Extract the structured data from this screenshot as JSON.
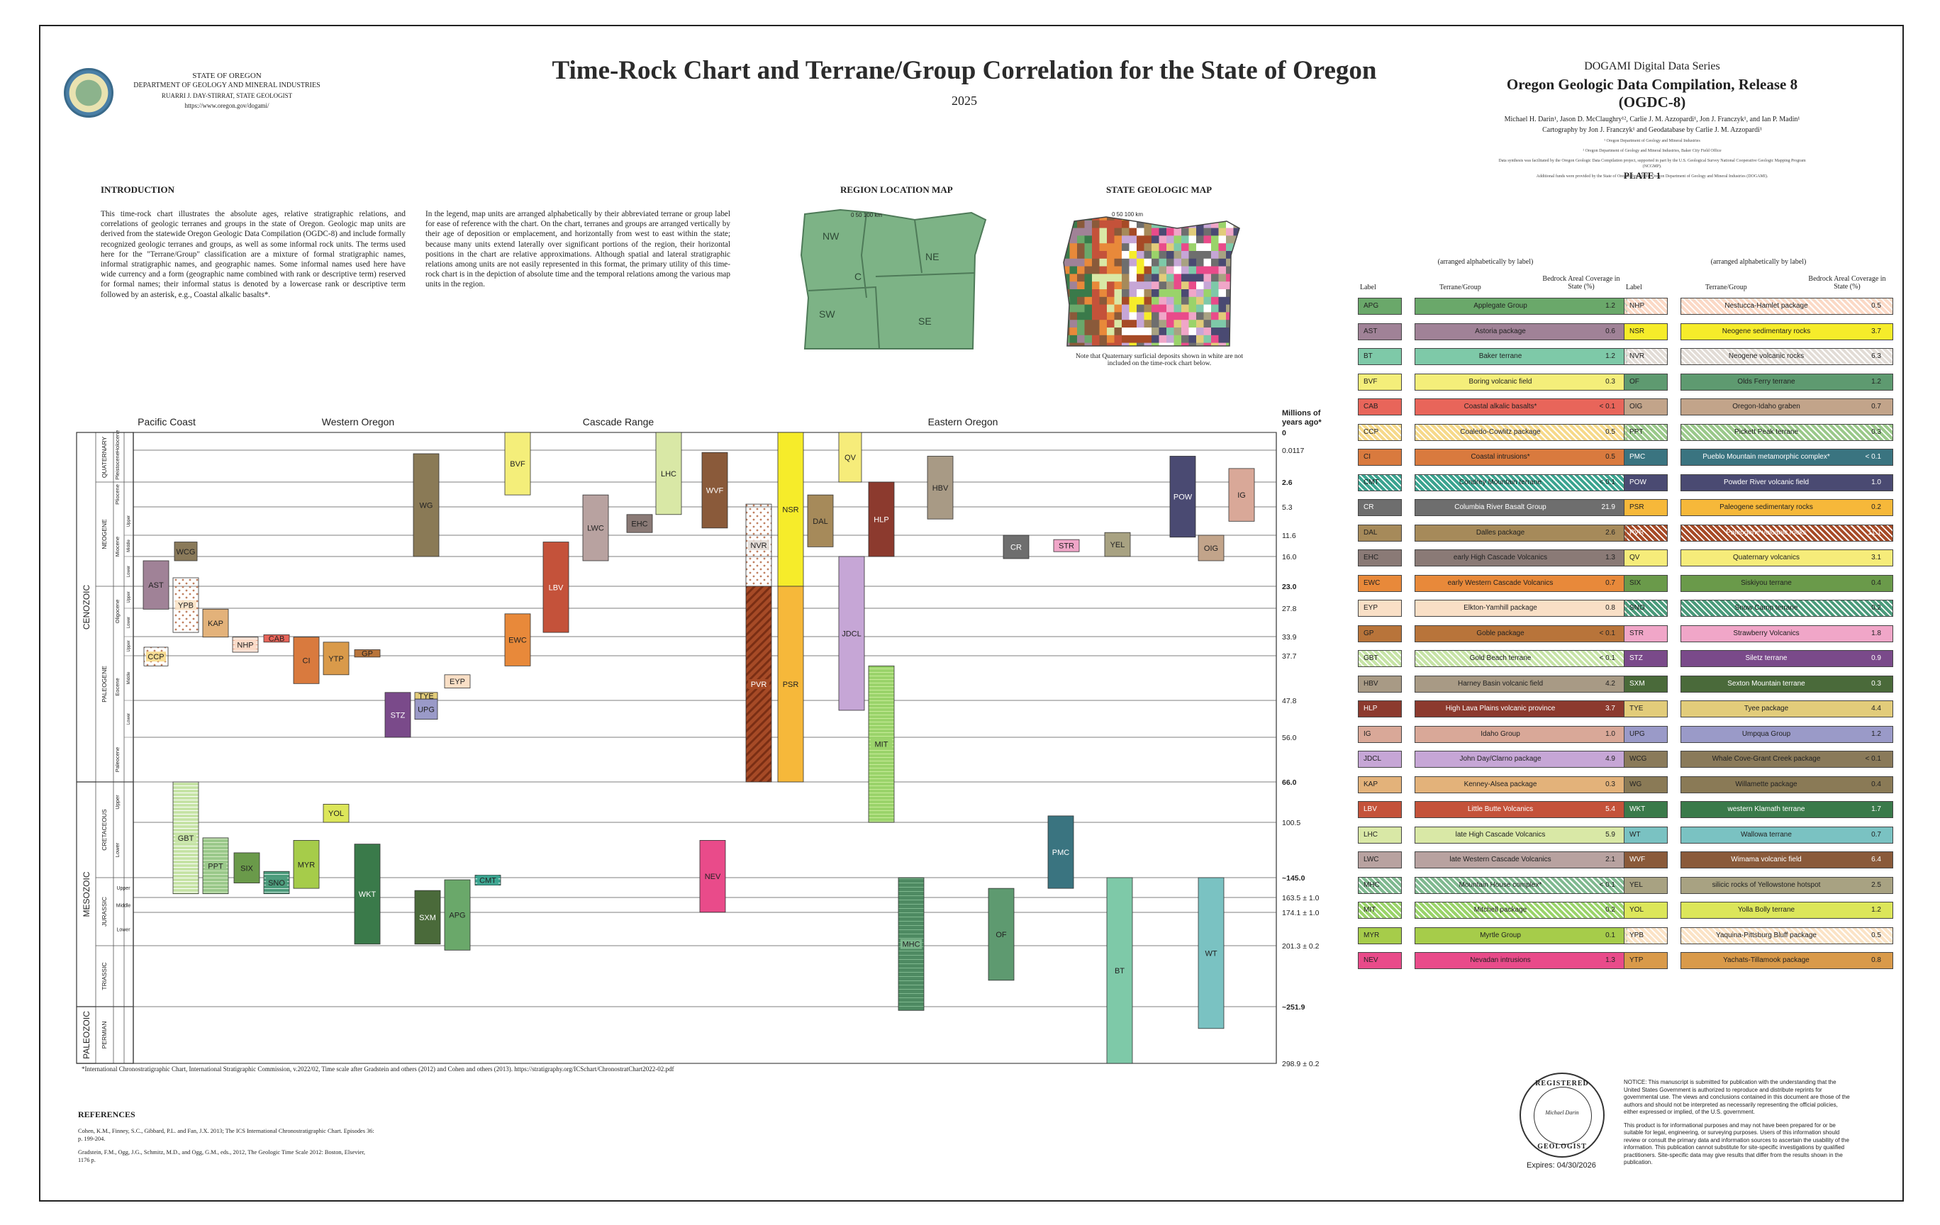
{
  "header": {
    "agency_line1": "STATE OF OREGON",
    "agency_line2": "DEPARTMENT OF GEOLOGY AND MINERAL INDUSTRIES",
    "agency_line3": "RUARRI J. DAY-STIRRAT, STATE GEOLOGIST",
    "agency_url": "https://www.oregon.gov/dogami/",
    "title": "Time-Rock Chart and Terrane/Group Correlation for the State of Oregon",
    "year": "2025",
    "series": "DOGAMI Digital Data Series",
    "release": "Oregon Geologic Data Compilation, Release 8 (OGDC-8)",
    "authors": "Michael H. Darin¹, Jason D. McClaughry¹², Carlie J. M. Azzopardi¹, Jon J. Franczyk¹, and Ian P. Madin¹",
    "cartography": "Cartography by Jon J. Franczyk¹ and Geodatabase by Carlie J. M. Azzopardi¹",
    "affil1": "¹ Oregon Department of Geology and Mineral Industries",
    "affil2": "² Oregon Department of Geology and Mineral Industries, Baker City Field Office",
    "support1": "Data synthesis was facilitated by the Oregon Geologic Data Compilation project, supported in part by the U.S. Geological Survey National Cooperative Geologic Mapping Program (NCGMP).",
    "support2": "Additional funds were provided by the State of Oregon through the Oregon Department of Geology and Mineral Industries (DOGAMI).",
    "plate": "PLATE 1"
  },
  "intro": {
    "heading": "INTRODUCTION",
    "para1": "This time-rock chart illustrates the absolute ages, relative stratigraphic relations, and correlations of geologic terranes and groups in the state of Oregon. Geologic map units are derived from the statewide Oregon Geologic Data Compilation (OGDC-8) and include formally recognized geologic terranes and groups, as well as some informal rock units. The terms used here for the \"Terrane/Group\" classification are a mixture of formal stratigraphic names, informal stratigraphic names, and geographic names. Some informal names used here have wide currency and a form (geographic name combined with rank or descriptive term) reserved for formal names; their informal status is denoted by a lowercase rank or descriptive term followed by an asterisk, e.g., Coastal alkalic basalts*.",
    "para2": "In the legend, map units are arranged alphabetically by their abbreviated terrane or group label for ease of reference with the chart. On the chart, terranes and groups are arranged vertically by their age of deposition or emplacement, and horizontally from west to east within the state; because many units extend laterally over significant portions of the region, their horizontal positions in the chart are relative approximations. Although spatial and lateral stratigraphic relations among units are not easily represented in this format, the primary utility of this time-rock chart is in the depiction of absolute time and the temporal relations among the various map units in the region."
  },
  "maps": {
    "region_title": "REGION LOCATION MAP",
    "state_title": "STATE GEOLOGIC MAP",
    "regions": [
      "NW",
      "C",
      "NE",
      "SW",
      "SE"
    ],
    "scale_label": "0   50   100 km",
    "note": "Note that Quaternary surficial deposits shown in white are not included on the time-rock chart below."
  },
  "legend": {
    "subtitle": "(arranged alphabetically by label)",
    "col_label": "Label",
    "col_name": "Terrane/Group",
    "col_cov": "Bedrock Areal Coverage in State (%)",
    "left": [
      {
        "label": "APG",
        "name": "Applegate Group",
        "cov": "1.2",
        "color": "#6aa86a"
      },
      {
        "label": "AST",
        "name": "Astoria package",
        "cov": "0.6",
        "color": "#a08297"
      },
      {
        "label": "BT",
        "name": "Baker terrane",
        "cov": "1.2",
        "color": "#7ec9a8"
      },
      {
        "label": "BVF",
        "name": "Boring volcanic field",
        "cov": "0.3",
        "color": "#f4ee7a"
      },
      {
        "label": "CAB",
        "name": "Coastal alkalic basalts*",
        "cov": "< 0.1",
        "color": "#e8655a"
      },
      {
        "label": "CCP",
        "name": "Coaledo-Cowlitz package",
        "cov": "0.5",
        "color": "#f6d98a"
      },
      {
        "label": "CI",
        "name": "Coastal intrusions*",
        "cov": "0.5",
        "color": "#d97a3e"
      },
      {
        "label": "CMT",
        "name": "Condrey Mountain terrane",
        "cov": "< 0.1",
        "color": "#3aa38f"
      },
      {
        "label": "CR",
        "name": "Columbia River Basalt Group",
        "cov": "21.9",
        "color": "#6e6e6e"
      },
      {
        "label": "DAL",
        "name": "Dalles package",
        "cov": "2.6",
        "color": "#a68a5a"
      },
      {
        "label": "EHC",
        "name": "early High Cascade Volcanics",
        "cov": "1.3",
        "color": "#8a7a76"
      },
      {
        "label": "EWC",
        "name": "early Western Cascade Volcanics",
        "cov": "0.7",
        "color": "#e8893a"
      },
      {
        "label": "EYP",
        "name": "Elkton-Yamhill package",
        "cov": "0.8",
        "color": "#f9dfc6"
      },
      {
        "label": "GP",
        "name": "Goble package",
        "cov": "< 0.1",
        "color": "#b8743a"
      },
      {
        "label": "GBT",
        "name": "Gold Beach terrane",
        "cov": "< 0.1",
        "color": "#c6e3a6"
      },
      {
        "label": "HBV",
        "name": "Harney Basin volcanic field",
        "cov": "4.2",
        "color": "#a89a85"
      },
      {
        "label": "HLP",
        "name": "High Lava Plains volcanic province",
        "cov": "3.7",
        "color": "#8c3a2e"
      },
      {
        "label": "IG",
        "name": "Idaho Group",
        "cov": "1.0",
        "color": "#d9a898"
      },
      {
        "label": "JDCL",
        "name": "John Day/Clarno package",
        "cov": "4.9",
        "color": "#c6a6d6"
      },
      {
        "label": "KAP",
        "name": "Kenney-Alsea package",
        "cov": "0.3",
        "color": "#e3b27a"
      },
      {
        "label": "LBV",
        "name": "Little Butte Volcanics",
        "cov": "5.4",
        "color": "#c4523a"
      },
      {
        "label": "LHC",
        "name": "late High Cascade Volcanics",
        "cov": "5.9",
        "color": "#d9e8a6"
      },
      {
        "label": "LWC",
        "name": "late Western Cascade Volcanics",
        "cov": "2.1",
        "color": "#b8a2a0"
      },
      {
        "label": "MHC",
        "name": "Mountain House complex*",
        "cov": "< 0.1",
        "color": "#7fb88f"
      },
      {
        "label": "MIT",
        "name": "Mitchell package",
        "cov": "0.2",
        "color": "#9ad36a"
      },
      {
        "label": "MYR",
        "name": "Myrtle Group",
        "cov": "0.1",
        "color": "#a6cc4a"
      },
      {
        "label": "NEV",
        "name": "Nevadan intrusions",
        "cov": "1.3",
        "color": "#e94b8a"
      }
    ],
    "right": [
      {
        "label": "NHP",
        "name": "Nestucca-Hamlet package",
        "cov": "0.5",
        "color": "#fbd9c6"
      },
      {
        "label": "NSR",
        "name": "Neogene sedimentary rocks",
        "cov": "3.7",
        "color": "#f6ec2a"
      },
      {
        "label": "NVR",
        "name": "Neogene volcanic rocks",
        "cov": "6.3",
        "color": "#e2dcd6"
      },
      {
        "label": "OF",
        "name": "Olds Ferry terrane",
        "cov": "1.2",
        "color": "#5e9a70"
      },
      {
        "label": "OIG",
        "name": "Oregon-Idaho graben",
        "cov": "0.7",
        "color": "#c2a48a"
      },
      {
        "label": "PPT",
        "name": "Pickett Peak terrane",
        "cov": "0.3",
        "color": "#9ac88a"
      },
      {
        "label": "PMC",
        "name": "Pueblo Mountain metamorphic complex*",
        "cov": "< 0.1",
        "color": "#3a7480"
      },
      {
        "label": "POW",
        "name": "Powder River volcanic field",
        "cov": "1.0",
        "color": "#4a4a72"
      },
      {
        "label": "PSR",
        "name": "Paleogene sedimentary rocks",
        "cov": "0.2",
        "color": "#f6b83a"
      },
      {
        "label": "PVR",
        "name": "Paleogene volcanic rocks",
        "cov": "11.1",
        "color": "#a64a26"
      },
      {
        "label": "QV",
        "name": "Quaternary volcanics",
        "cov": "3.1",
        "color": "#f6ec7a"
      },
      {
        "label": "SIX",
        "name": "Siskiyou terrane",
        "cov": "0.4",
        "color": "#6a9a4a"
      },
      {
        "label": "SNO",
        "name": "Snow Camp terrane",
        "cov": "0.2",
        "color": "#4a9a7a"
      },
      {
        "label": "STR",
        "name": "Strawberry Volcanics",
        "cov": "1.8",
        "color": "#f0a6c8"
      },
      {
        "label": "STZ",
        "name": "Siletz terrane",
        "cov": "0.9",
        "color": "#7a4a8a"
      },
      {
        "label": "SXM",
        "name": "Sexton Mountain terrane",
        "cov": "0.3",
        "color": "#4a6a3a"
      },
      {
        "label": "TYE",
        "name": "Tyee package",
        "cov": "4.4",
        "color": "#e2cc7a"
      },
      {
        "label": "UPG",
        "name": "Umpqua Group",
        "cov": "1.2",
        "color": "#9a9ac8"
      },
      {
        "label": "WCG",
        "name": "Whale Cove-Grant Creek package",
        "cov": "< 0.1",
        "color": "#8a7a5a"
      },
      {
        "label": "WG",
        "name": "Willamette package",
        "cov": "0.4",
        "color": "#8a7a56"
      },
      {
        "label": "WKT",
        "name": "western Klamath terrane",
        "cov": "1.7",
        "color": "#3a7a4a"
      },
      {
        "label": "WT",
        "name": "Wallowa terrane",
        "cov": "0.7",
        "color": "#7ac2c2"
      },
      {
        "label": "WVF",
        "name": "Wimama volcanic field",
        "cov": "6.4",
        "color": "#8a5a3a"
      },
      {
        "label": "YEL",
        "name": "silicic rocks of Yellowstone hotspot",
        "cov": "2.5",
        "color": "#a8a282"
      },
      {
        "label": "YOL",
        "name": "Yolla Bolly terrane",
        "cov": "1.2",
        "color": "#dce65a"
      },
      {
        "label": "YPB",
        "name": "Yaquina-Pittsburg Bluff package",
        "cov": "0.5",
        "color": "#fbe3c6"
      },
      {
        "label": "YTP",
        "name": "Yachats-Tillamook package",
        "cov": "0.8",
        "color": "#d99a4a"
      }
    ]
  },
  "chart_data": {
    "type": "bar",
    "ylabel": "Millions of years ago*",
    "regions": [
      "Pacific Coast",
      "Western Oregon",
      "Cascade Range",
      "Eastern Oregon"
    ],
    "eras": [
      "CENOZOIC",
      "MESOZOIC",
      "PALEOZOIC"
    ],
    "periods": [
      "QUATERNARY",
      "NEOGENE",
      "PALEOGENE",
      "CRETACEOUS",
      "JURASSIC",
      "TRIASSIC",
      "PERMIAN"
    ],
    "epochs": [
      "Holocene",
      "Pleistocene",
      "Pliocene",
      "Miocene",
      "Oligocene",
      "Eocene",
      "Paleocene",
      "Upper",
      "Lower",
      "Upper",
      "Middle",
      "Lower"
    ],
    "substages": [
      "Upper",
      "Middle",
      "Lower",
      "Upper",
      "Lower",
      "Upper",
      "Middle",
      "Lower"
    ],
    "age_ticks": [
      "0",
      "0.0117",
      "2.6",
      "5.3",
      "11.6",
      "16.0",
      "23.0",
      "27.8",
      "33.9",
      "37.7",
      "47.8",
      "56.0",
      "66.0",
      "100.5",
      "~145.0",
      "163.5 ± 1.0",
      "174.1 ± 1.0",
      "201.3 ± 0.2",
      "~251.9",
      "298.9 ± 0.2"
    ],
    "units": [
      {
        "label": "AST",
        "from": 17,
        "to": 28,
        "region": "Pacific Coast"
      },
      {
        "label": "WCG",
        "from": 13,
        "to": 17,
        "region": "Pacific Coast"
      },
      {
        "label": "YPB",
        "from": 21,
        "to": 33,
        "region": "Pacific Coast"
      },
      {
        "label": "CCP",
        "from": 36,
        "to": 40,
        "region": "Pacific Coast"
      },
      {
        "label": "KAP",
        "from": 28,
        "to": 34,
        "region": "Pacific Coast"
      },
      {
        "label": "NHP",
        "from": 34,
        "to": 37,
        "region": "Pacific Coast"
      },
      {
        "label": "CAB",
        "from": 33.5,
        "to": 35,
        "region": "Pacific Coast"
      },
      {
        "label": "CI",
        "from": 34,
        "to": 44,
        "region": "Pacific Coast"
      },
      {
        "label": "YTP",
        "from": 35,
        "to": 42,
        "region": "Western Oregon"
      },
      {
        "label": "GP",
        "from": 36.5,
        "to": 38,
        "region": "Western Oregon"
      },
      {
        "label": "STZ",
        "from": 46,
        "to": 56,
        "region": "Western Oregon"
      },
      {
        "label": "TYE",
        "from": 46,
        "to": 47.5,
        "region": "Western Oregon"
      },
      {
        "label": "UPG",
        "from": 47.5,
        "to": 52,
        "region": "Western Oregon"
      },
      {
        "label": "EYP",
        "from": 42,
        "to": 45,
        "region": "Western Oregon"
      },
      {
        "label": "WG",
        "from": 0.3,
        "to": 16,
        "region": "Western Oregon"
      },
      {
        "label": "BVF",
        "from": 0,
        "to": 4,
        "region": "Cascade Range"
      },
      {
        "label": "EWC",
        "from": 29,
        "to": 40,
        "region": "Cascade Range"
      },
      {
        "label": "LBV",
        "from": 13,
        "to": 33,
        "region": "Cascade Range"
      },
      {
        "label": "LWC",
        "from": 4,
        "to": 17,
        "region": "Cascade Range"
      },
      {
        "label": "EHC",
        "from": 7,
        "to": 11,
        "region": "Cascade Range"
      },
      {
        "label": "LHC",
        "from": 0,
        "to": 7,
        "region": "Cascade Range"
      },
      {
        "label": "WVF",
        "from": 0.2,
        "to": 10,
        "region": "Cascade Range"
      },
      {
        "label": "NVR",
        "from": 5,
        "to": 23,
        "region": "Eastern Oregon"
      },
      {
        "label": "PVR",
        "from": 23,
        "to": 66,
        "region": "Eastern Oregon"
      },
      {
        "label": "NSR",
        "from": 0,
        "to": 23,
        "region": "Eastern Oregon"
      },
      {
        "label": "PSR",
        "from": 23,
        "to": 66,
        "region": "Eastern Oregon"
      },
      {
        "label": "DAL",
        "from": 4,
        "to": 14,
        "region": "Eastern Oregon"
      },
      {
        "label": "QV",
        "from": 0,
        "to": 2.6,
        "region": "Eastern Oregon"
      },
      {
        "label": "JDCL",
        "from": 16,
        "to": 50,
        "region": "Eastern Oregon"
      },
      {
        "label": "MIT",
        "from": 40,
        "to": 100.5,
        "region": "Eastern Oregon"
      },
      {
        "label": "HLP",
        "from": 2.6,
        "to": 16,
        "region": "Eastern Oregon"
      },
      {
        "label": "HBV",
        "from": 0.5,
        "to": 8,
        "region": "Eastern Oregon"
      },
      {
        "label": "CR",
        "from": 11.6,
        "to": 16.5,
        "region": "Eastern Oregon"
      },
      {
        "label": "STR",
        "from": 12.5,
        "to": 15,
        "region": "Eastern Oregon"
      },
      {
        "label": "YEL",
        "from": 11,
        "to": 16,
        "region": "Eastern Oregon"
      },
      {
        "label": "POW",
        "from": 0.5,
        "to": 12,
        "region": "Eastern Oregon"
      },
      {
        "label": "OIG",
        "from": 11.6,
        "to": 17,
        "region": "Eastern Oregon"
      },
      {
        "label": "IG",
        "from": 1.5,
        "to": 8.5,
        "region": "Eastern Oregon"
      },
      {
        "label": "GBT",
        "from": 66,
        "to": 160,
        "region": "Pacific Coast"
      },
      {
        "label": "PPT",
        "from": 113,
        "to": 160,
        "region": "Pacific Coast"
      },
      {
        "label": "SIX",
        "from": 125,
        "to": 150,
        "region": "Pacific Coast"
      },
      {
        "label": "SNO",
        "from": 140,
        "to": 160,
        "region": "Pacific Coast"
      },
      {
        "label": "MYR",
        "from": 115,
        "to": 155,
        "region": "Western Oregon"
      },
      {
        "label": "YOL",
        "from": 85,
        "to": 100.5,
        "region": "Western Oregon"
      },
      {
        "label": "WKT",
        "from": 118,
        "to": 200,
        "region": "Western Oregon"
      },
      {
        "label": "SXM",
        "from": 157,
        "to": 200,
        "region": "Western Oregon"
      },
      {
        "label": "APG",
        "from": 147,
        "to": 205,
        "region": "Western Oregon"
      },
      {
        "label": "CMT",
        "from": 143,
        "to": 152,
        "region": "Western Oregon"
      },
      {
        "label": "NEV",
        "from": 115,
        "to": 174,
        "region": "Eastern Oregon"
      },
      {
        "label": "MHC",
        "from": 145,
        "to": 255,
        "region": "Eastern Oregon"
      },
      {
        "label": "OF",
        "from": 155,
        "to": 230,
        "region": "Eastern Oregon"
      },
      {
        "label": "PMC",
        "from": 95,
        "to": 155,
        "region": "Eastern Oregon"
      },
      {
        "label": "BT",
        "from": 145,
        "to": 298.9,
        "region": "Eastern Oregon"
      },
      {
        "label": "WT",
        "from": 145,
        "to": 270,
        "region": "Eastern Oregon"
      }
    ]
  },
  "footnote": "*International Chronostratigraphic Chart, International Stratigraphic Commission, v.2022/02, Time scale after Gradstein and others (2012) and Cohen and others (2013). https://stratigraphy.org/ICSchart/ChronostratChart2022-02.pdf",
  "references": {
    "heading": "REFERENCES",
    "ref1": "Cohen, K.M., Finney, S.C., Gibbard, P.L. and Fan, J.X. 2013; The ICS International Chronostratigraphic Chart. Episodes 36: p. 199-204.",
    "ref2": "Gradstein, F.M., Ogg, J.G., Schmitz, M.D., and Ogg, G.M., eds., 2012, The Geologic Time Scale 2012: Boston, Elsevier, 1176 p."
  },
  "stamp": {
    "top": "REGISTERED",
    "middle": "Michael Darin",
    "bottom": "GEOLOGIST",
    "expires": "Expires: 04/30/2026"
  },
  "notice": {
    "p1": "NOTICE: This manuscript is submitted for publication with the understanding that the United States Government is authorized to reproduce and distribute reprints for governmental use. The views and conclusions contained in this document are those of the authors and should not be interpreted as necessarily representing the official policies, either expressed or implied, of the U.S. government.",
    "p2": "This product is for informational purposes and may not have been prepared for or be suitable for legal, engineering, or surveying purposes. Users of this information should review or consult the primary data and information sources to ascertain the usability of the information. This publication cannot substitute for site-specific investigations by qualified practitioners. Site-specific data may give results that differ from the results shown in the publication."
  }
}
